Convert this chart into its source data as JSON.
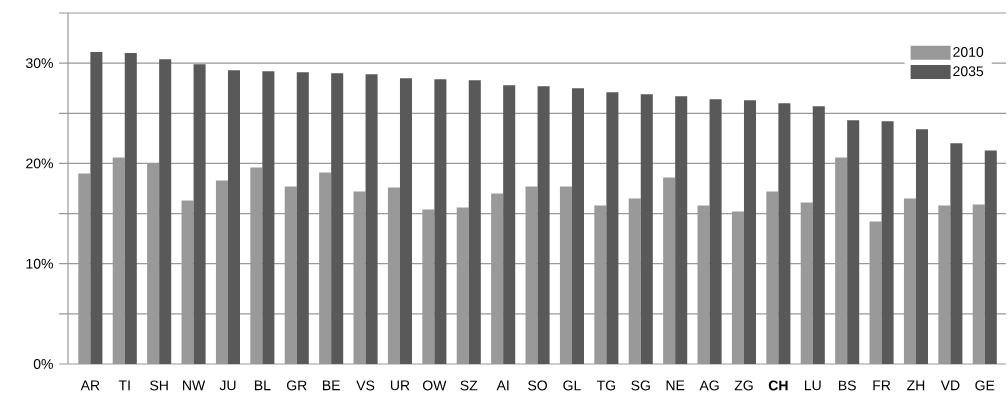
{
  "chart_data": {
    "type": "bar",
    "categories": [
      "AR",
      "TI",
      "SH",
      "NW",
      "JU",
      "BL",
      "GR",
      "BE",
      "VS",
      "UR",
      "OW",
      "SZ",
      "AI",
      "SO",
      "GL",
      "TG",
      "SG",
      "NE",
      "AG",
      "ZG",
      "**CH**",
      "LU",
      "BS",
      "FR",
      "ZH",
      "VD",
      "GE"
    ],
    "series": [
      {
        "name": "2010",
        "color": "#999999",
        "values": [
          19.0,
          20.6,
          20.0,
          16.3,
          18.3,
          19.6,
          17.7,
          19.1,
          17.2,
          17.6,
          15.4,
          15.6,
          17.0,
          17.7,
          17.7,
          15.8,
          16.5,
          18.6,
          15.8,
          15.2,
          17.2,
          16.1,
          20.6,
          14.2,
          16.5,
          15.8,
          15.9
        ]
      },
      {
        "name": "2035",
        "color": "#595959",
        "values": [
          31.1,
          31.0,
          30.4,
          29.9,
          29.3,
          29.2,
          29.1,
          29.0,
          28.9,
          28.5,
          28.4,
          28.3,
          27.8,
          27.7,
          27.5,
          27.1,
          26.9,
          26.7,
          26.4,
          26.3,
          26.0,
          25.7,
          24.3,
          24.2,
          23.4,
          22.0,
          21.3
        ]
      }
    ],
    "ylim": [
      0,
      35
    ],
    "yticks": [
      {
        "value": 0,
        "label": "0%"
      },
      {
        "value": 5,
        "label": null
      },
      {
        "value": 10,
        "label": "10%"
      },
      {
        "value": 15,
        "label": null
      },
      {
        "value": 20,
        "label": "20%"
      },
      {
        "value": 25,
        "label": null
      },
      {
        "value": 30,
        "label": "30%"
      },
      {
        "value": 35,
        "label": null
      }
    ],
    "grid": "y",
    "legend": "top right"
  }
}
